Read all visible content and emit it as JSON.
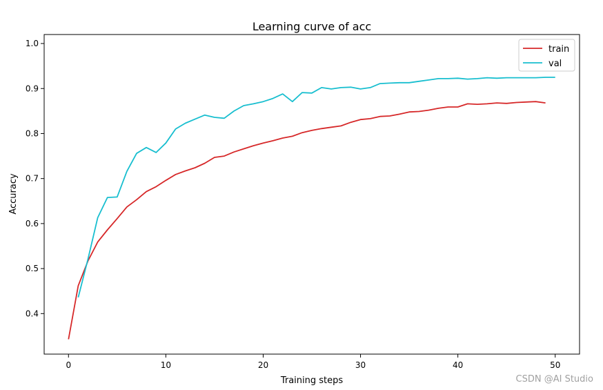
{
  "chart_data": {
    "type": "line",
    "title": "Learning curve of acc",
    "xlabel": "Training steps",
    "ylabel": "Accuracy",
    "xlim": [
      -2.5,
      52.5
    ],
    "ylim": [
      0.31,
      1.02
    ],
    "xticks": [
      0,
      10,
      20,
      30,
      40,
      50
    ],
    "yticks": [
      0.4,
      0.5,
      0.6,
      0.7,
      0.8,
      0.9,
      1.0
    ],
    "xtick_labels": [
      "0",
      "10",
      "20",
      "30",
      "40",
      "50"
    ],
    "ytick_labels": [
      "0.4",
      "0.5",
      "0.6",
      "0.7",
      "0.8",
      "0.9",
      "1.0"
    ],
    "grid": false,
    "legend_position": "top-right",
    "series": [
      {
        "name": "train",
        "color": "#d62728",
        "x": [
          0,
          1,
          2,
          3,
          4,
          5,
          6,
          7,
          8,
          9,
          10,
          11,
          12,
          13,
          14,
          15,
          16,
          17,
          18,
          19,
          20,
          21,
          22,
          23,
          24,
          25,
          26,
          27,
          28,
          29,
          30,
          31,
          32,
          33,
          34,
          35,
          36,
          37,
          38,
          39,
          40,
          41,
          42,
          43,
          44,
          45,
          46,
          47,
          48,
          49
        ],
        "values": [
          0.343,
          0.462,
          0.517,
          0.559,
          0.586,
          0.611,
          0.637,
          0.653,
          0.671,
          0.682,
          0.696,
          0.709,
          0.717,
          0.724,
          0.734,
          0.747,
          0.75,
          0.759,
          0.766,
          0.773,
          0.779,
          0.784,
          0.79,
          0.794,
          0.802,
          0.807,
          0.811,
          0.814,
          0.817,
          0.825,
          0.831,
          0.833,
          0.838,
          0.839,
          0.843,
          0.848,
          0.849,
          0.852,
          0.856,
          0.859,
          0.859,
          0.866,
          0.865,
          0.866,
          0.868,
          0.867,
          0.869,
          0.87,
          0.871,
          0.868
        ]
      },
      {
        "name": "val",
        "color": "#17becf",
        "x": [
          1,
          2,
          3,
          4,
          5,
          6,
          7,
          8,
          9,
          10,
          11,
          12,
          13,
          14,
          15,
          16,
          17,
          18,
          19,
          20,
          21,
          22,
          23,
          24,
          25,
          26,
          27,
          28,
          29,
          30,
          31,
          32,
          33,
          34,
          35,
          36,
          37,
          38,
          39,
          40,
          41,
          42,
          43,
          44,
          45,
          46,
          47,
          48,
          49,
          50
        ],
        "values": [
          0.436,
          0.521,
          0.613,
          0.658,
          0.659,
          0.716,
          0.756,
          0.769,
          0.758,
          0.779,
          0.81,
          0.823,
          0.832,
          0.841,
          0.836,
          0.834,
          0.85,
          0.862,
          0.866,
          0.871,
          0.878,
          0.888,
          0.871,
          0.891,
          0.89,
          0.902,
          0.899,
          0.902,
          0.903,
          0.899,
          0.902,
          0.911,
          0.912,
          0.913,
          0.913,
          0.916,
          0.919,
          0.922,
          0.922,
          0.923,
          0.921,
          0.922,
          0.924,
          0.923,
          0.924,
          0.924,
          0.924,
          0.924,
          0.925,
          0.925
        ]
      }
    ]
  },
  "watermark": "CSDN @AI Studio"
}
